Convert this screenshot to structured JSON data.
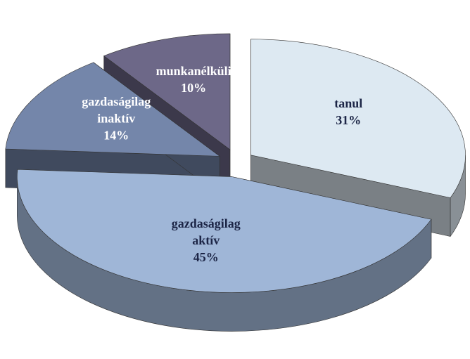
{
  "chart_data": {
    "type": "pie",
    "categories": [
      "tanul",
      "gazdaságilag aktív",
      "gazdaságilag inaktív",
      "munkanélküli"
    ],
    "values": [
      31,
      45,
      14,
      10
    ],
    "value_labels": [
      "31%",
      "45%",
      "14%",
      "10%"
    ],
    "colors": [
      "#dde9f2",
      "#9fb6d7",
      "#7486aa",
      "#6d6888"
    ],
    "exploded": true,
    "three_d": true
  }
}
